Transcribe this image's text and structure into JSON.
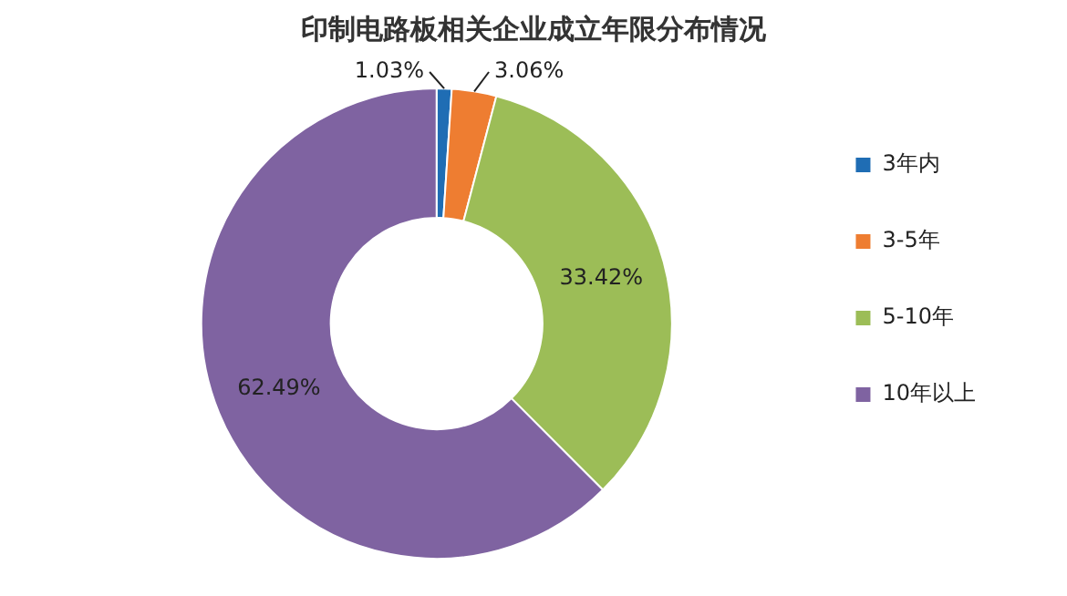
{
  "chart_data": {
    "type": "donut",
    "title": "印制电路板相关企业成立年限分布情况",
    "categories": [
      "3年内",
      "3-5年",
      "5-10年",
      "10年以上"
    ],
    "values": [
      1.03,
      3.06,
      33.42,
      62.49
    ],
    "colors": [
      "#1f6db4",
      "#ee7d31",
      "#9cbd57",
      "#7f63a1"
    ],
    "value_labels": [
      "1.03%",
      "3.06%",
      "33.42%",
      "62.49%"
    ],
    "legend": "right"
  }
}
